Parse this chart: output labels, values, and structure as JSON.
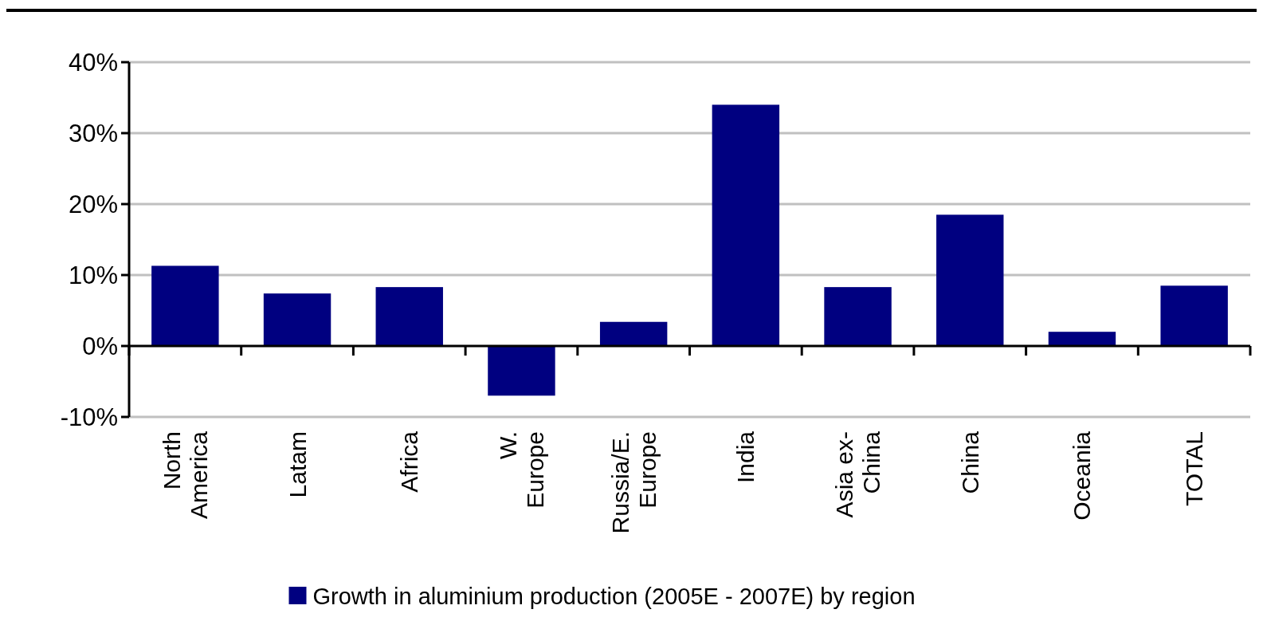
{
  "chart_data": {
    "type": "bar",
    "categories": [
      "North America",
      "Latam",
      "Africa",
      "W. Europe",
      "Russia/E. Europe",
      "India",
      "Asia ex-China",
      "China",
      "Oceania",
      "TOTAL"
    ],
    "series": [
      {
        "name": "Growth in aluminium production (2005E - 2007E) by region",
        "color": "#000080",
        "values": [
          11.3,
          7.4,
          8.3,
          -7.0,
          3.4,
          34.0,
          8.3,
          18.5,
          2.0,
          8.5
        ]
      }
    ],
    "ylim": [
      -10,
      40
    ],
    "yticks": [
      {
        "value": -10,
        "label": "-10%"
      },
      {
        "value": 0,
        "label": "0%"
      },
      {
        "value": 10,
        "label": "10%"
      },
      {
        "value": 20,
        "label": "20%"
      },
      {
        "value": 30,
        "label": "30%"
      },
      {
        "value": 40,
        "label": "40%"
      }
    ],
    "grid": "y",
    "legend": "bottom"
  }
}
